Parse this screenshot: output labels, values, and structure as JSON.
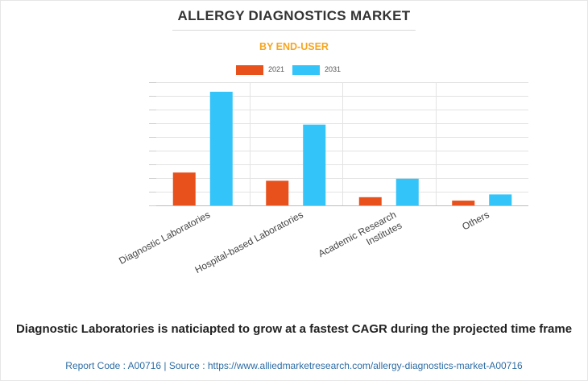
{
  "title": "ALLERGY DIAGNOSTICS MARKET",
  "subtitle": "BY END-USER",
  "caption": "Diagnostic Laboratories is naticiapted to grow at a fastest CAGR during the projected time frame",
  "footer": "Report Code : A00716  |  Source : https://www.alliedmarketresearch.com/allergy-diagnostics-market-A00716",
  "colors": {
    "2021": "#e8501c",
    "2031": "#33c4f9",
    "title": "#333333",
    "subtitle": "#f5a623",
    "footer": "#2e6da4"
  },
  "chart_data": {
    "type": "bar",
    "categories": [
      "Diagnostic Laboratories",
      "Hospital-based Laboratories",
      "Academic Research Institutes",
      "Others"
    ],
    "category_lines": [
      [
        "Diagnostic Laboratories"
      ],
      [
        "Hospital-based Laboratories"
      ],
      [
        "Academic Research",
        "Institutes"
      ],
      [
        "Others"
      ]
    ],
    "series": [
      {
        "name": "2021",
        "values": [
          2.4,
          1.8,
          0.6,
          0.35
        ]
      },
      {
        "name": "2031",
        "values": [
          8.3,
          5.9,
          1.95,
          0.8
        ]
      }
    ],
    "ylim": [
      0,
      9
    ],
    "y_tick_count": 9,
    "grid": true,
    "legend_position": "top-center",
    "title": "",
    "xlabel": "",
    "ylabel": ""
  }
}
